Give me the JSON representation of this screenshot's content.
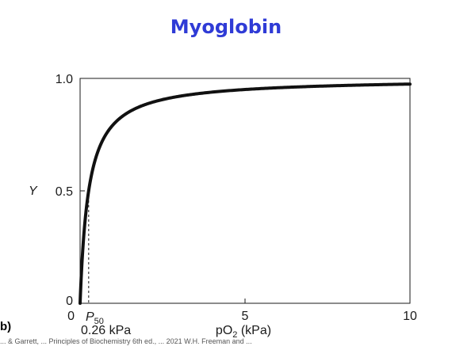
{
  "slide": {
    "title": "Myoglobin",
    "title_color": "#2f3bd6",
    "panel_letter": "b)",
    "footer_text": "... & Garrett, ... Principles of Biochemistry 6th ed., ... 2021 W.H. Freeman and ..."
  },
  "chart_data": {
    "type": "line",
    "title": "",
    "xlabel": "pO₂ (kPa)",
    "xlabel_base": "pO",
    "xlabel_sub": "2",
    "xlabel_unit": " (kPa)",
    "ylabel": "Y",
    "xlim": [
      0,
      10
    ],
    "ylim": [
      0,
      1.0
    ],
    "x_ticks": [
      {
        "value": 0,
        "label": "0"
      },
      {
        "value": 5,
        "label": "5"
      },
      {
        "value": 10,
        "label": "10"
      }
    ],
    "y_ticks": [
      {
        "value": 0,
        "label": "0"
      },
      {
        "value": 0.5,
        "label": "0.5"
      },
      {
        "value": 1.0,
        "label": "1.0"
      }
    ],
    "series": [
      {
        "curve": "hyperbolic",
        "p50": 0.26,
        "color": "#111111",
        "x": [
          0,
          0.1,
          0.2,
          0.26,
          0.4,
          0.6,
          0.8,
          1.0,
          1.5,
          2.0,
          2.5,
          3.0,
          4.0,
          5.0,
          6.0,
          7.0,
          8.0,
          9.0,
          10.0
        ],
        "y": [
          0,
          0.278,
          0.435,
          0.5,
          0.606,
          0.698,
          0.755,
          0.794,
          0.852,
          0.885,
          0.906,
          0.92,
          0.939,
          0.951,
          0.958,
          0.964,
          0.969,
          0.972,
          0.975
        ]
      }
    ],
    "annotations": [
      {
        "type": "p50-marker",
        "x": 0.26,
        "y": 0.5,
        "style": "dashed",
        "label_base": "P",
        "label_sub": "50",
        "value_label": "0.26 kPa"
      }
    ],
    "grid": false
  }
}
